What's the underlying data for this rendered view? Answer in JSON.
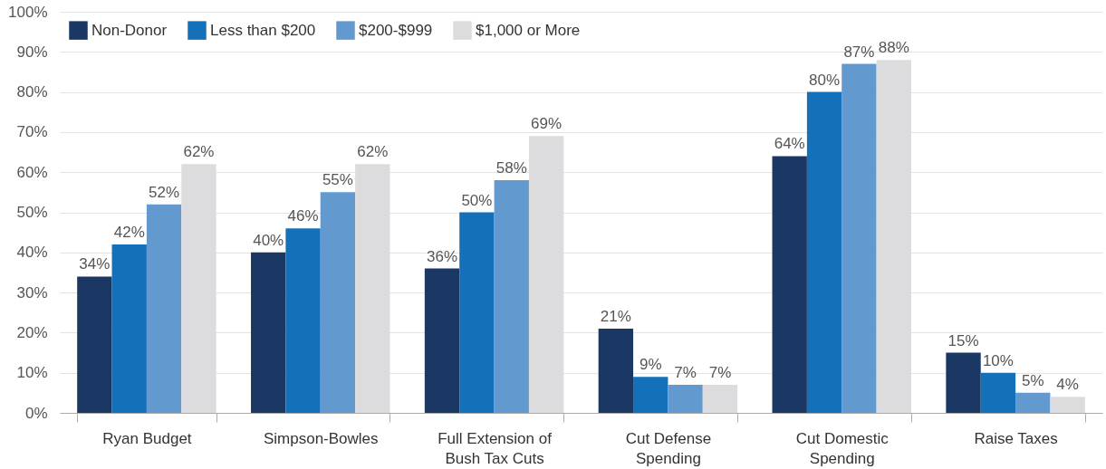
{
  "chart_data": {
    "type": "bar",
    "categories": [
      "Ryan Budget",
      "Simpson-Bowles",
      "Full Extension of Bush Tax Cuts",
      "Cut Defense Spending",
      "Cut Domestic Spending",
      "Raise Taxes"
    ],
    "series": [
      {
        "name": "Non-Donor",
        "color": "#1b3763",
        "values": [
          34,
          40,
          36,
          21,
          64,
          15
        ],
        "value_labels": [
          "34%",
          "40%",
          "36%",
          "21%",
          "64%",
          "15%"
        ]
      },
      {
        "name": "Less than $200",
        "color": "#1470b9",
        "values": [
          42,
          46,
          50,
          9,
          80,
          10
        ],
        "value_labels": [
          "42%",
          "46%",
          "50%",
          "9%",
          "80%",
          "10%"
        ]
      },
      {
        "name": "$200-$999",
        "color": "#6299cf",
        "values": [
          52,
          55,
          58,
          7,
          87,
          5
        ],
        "value_labels": [
          "52%",
          "55%",
          "58%",
          "7%",
          "87%",
          "5%"
        ]
      },
      {
        "name": "$1,000 or More",
        "color": "#dcdcde",
        "values": [
          62,
          62,
          69,
          7,
          88,
          4
        ],
        "value_labels": [
          "62%",
          "62%",
          "69%",
          "7%",
          "88%",
          "4%"
        ]
      }
    ],
    "ylim": [
      0,
      100
    ],
    "yticks": [
      {
        "value": 0,
        "label": "0%"
      },
      {
        "value": 10,
        "label": "10%"
      },
      {
        "value": 20,
        "label": "20%"
      },
      {
        "value": 30,
        "label": "30%"
      },
      {
        "value": 40,
        "label": "40%"
      },
      {
        "value": 50,
        "label": "50%"
      },
      {
        "value": 60,
        "label": "60%"
      },
      {
        "value": 70,
        "label": "70%"
      },
      {
        "value": 80,
        "label": "80%"
      },
      {
        "value": 90,
        "label": "90%"
      },
      {
        "value": 100,
        "label": "100%"
      }
    ],
    "grid": "y",
    "legend": "top left"
  }
}
